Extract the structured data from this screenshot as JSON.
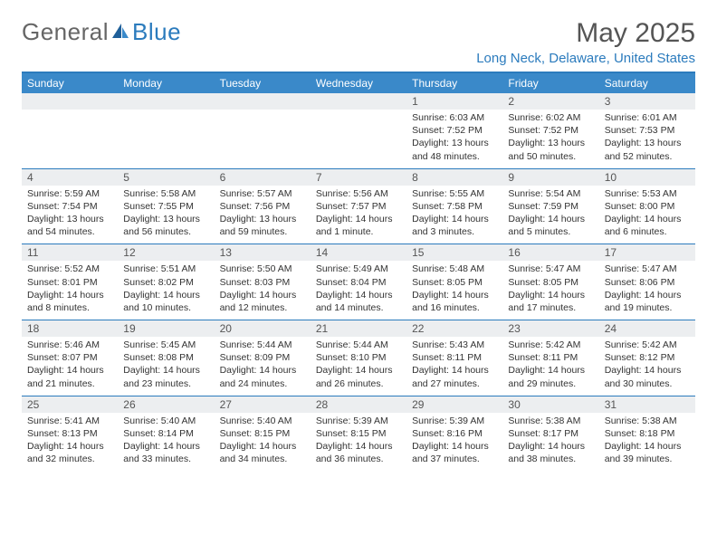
{
  "brand": {
    "part1": "General",
    "part2": "Blue"
  },
  "title": "May 2025",
  "location": "Long Neck, Delaware, United States",
  "colors": {
    "accent": "#2b7bbd",
    "header_bg": "#3a89c9",
    "daynum_bg": "#eceef0",
    "text": "#333333",
    "title_text": "#555555"
  },
  "weekdays": [
    "Sunday",
    "Monday",
    "Tuesday",
    "Wednesday",
    "Thursday",
    "Friday",
    "Saturday"
  ],
  "weeks": [
    [
      null,
      null,
      null,
      null,
      {
        "n": "1",
        "sr": "6:03 AM",
        "ss": "7:52 PM",
        "dl": "13 hours and 48 minutes."
      },
      {
        "n": "2",
        "sr": "6:02 AM",
        "ss": "7:52 PM",
        "dl": "13 hours and 50 minutes."
      },
      {
        "n": "3",
        "sr": "6:01 AM",
        "ss": "7:53 PM",
        "dl": "13 hours and 52 minutes."
      }
    ],
    [
      {
        "n": "4",
        "sr": "5:59 AM",
        "ss": "7:54 PM",
        "dl": "13 hours and 54 minutes."
      },
      {
        "n": "5",
        "sr": "5:58 AM",
        "ss": "7:55 PM",
        "dl": "13 hours and 56 minutes."
      },
      {
        "n": "6",
        "sr": "5:57 AM",
        "ss": "7:56 PM",
        "dl": "13 hours and 59 minutes."
      },
      {
        "n": "7",
        "sr": "5:56 AM",
        "ss": "7:57 PM",
        "dl": "14 hours and 1 minute."
      },
      {
        "n": "8",
        "sr": "5:55 AM",
        "ss": "7:58 PM",
        "dl": "14 hours and 3 minutes."
      },
      {
        "n": "9",
        "sr": "5:54 AM",
        "ss": "7:59 PM",
        "dl": "14 hours and 5 minutes."
      },
      {
        "n": "10",
        "sr": "5:53 AM",
        "ss": "8:00 PM",
        "dl": "14 hours and 6 minutes."
      }
    ],
    [
      {
        "n": "11",
        "sr": "5:52 AM",
        "ss": "8:01 PM",
        "dl": "14 hours and 8 minutes."
      },
      {
        "n": "12",
        "sr": "5:51 AM",
        "ss": "8:02 PM",
        "dl": "14 hours and 10 minutes."
      },
      {
        "n": "13",
        "sr": "5:50 AM",
        "ss": "8:03 PM",
        "dl": "14 hours and 12 minutes."
      },
      {
        "n": "14",
        "sr": "5:49 AM",
        "ss": "8:04 PM",
        "dl": "14 hours and 14 minutes."
      },
      {
        "n": "15",
        "sr": "5:48 AM",
        "ss": "8:05 PM",
        "dl": "14 hours and 16 minutes."
      },
      {
        "n": "16",
        "sr": "5:47 AM",
        "ss": "8:05 PM",
        "dl": "14 hours and 17 minutes."
      },
      {
        "n": "17",
        "sr": "5:47 AM",
        "ss": "8:06 PM",
        "dl": "14 hours and 19 minutes."
      }
    ],
    [
      {
        "n": "18",
        "sr": "5:46 AM",
        "ss": "8:07 PM",
        "dl": "14 hours and 21 minutes."
      },
      {
        "n": "19",
        "sr": "5:45 AM",
        "ss": "8:08 PM",
        "dl": "14 hours and 23 minutes."
      },
      {
        "n": "20",
        "sr": "5:44 AM",
        "ss": "8:09 PM",
        "dl": "14 hours and 24 minutes."
      },
      {
        "n": "21",
        "sr": "5:44 AM",
        "ss": "8:10 PM",
        "dl": "14 hours and 26 minutes."
      },
      {
        "n": "22",
        "sr": "5:43 AM",
        "ss": "8:11 PM",
        "dl": "14 hours and 27 minutes."
      },
      {
        "n": "23",
        "sr": "5:42 AM",
        "ss": "8:11 PM",
        "dl": "14 hours and 29 minutes."
      },
      {
        "n": "24",
        "sr": "5:42 AM",
        "ss": "8:12 PM",
        "dl": "14 hours and 30 minutes."
      }
    ],
    [
      {
        "n": "25",
        "sr": "5:41 AM",
        "ss": "8:13 PM",
        "dl": "14 hours and 32 minutes."
      },
      {
        "n": "26",
        "sr": "5:40 AM",
        "ss": "8:14 PM",
        "dl": "14 hours and 33 minutes."
      },
      {
        "n": "27",
        "sr": "5:40 AM",
        "ss": "8:15 PM",
        "dl": "14 hours and 34 minutes."
      },
      {
        "n": "28",
        "sr": "5:39 AM",
        "ss": "8:15 PM",
        "dl": "14 hours and 36 minutes."
      },
      {
        "n": "29",
        "sr": "5:39 AM",
        "ss": "8:16 PM",
        "dl": "14 hours and 37 minutes."
      },
      {
        "n": "30",
        "sr": "5:38 AM",
        "ss": "8:17 PM",
        "dl": "14 hours and 38 minutes."
      },
      {
        "n": "31",
        "sr": "5:38 AM",
        "ss": "8:18 PM",
        "dl": "14 hours and 39 minutes."
      }
    ]
  ],
  "labels": {
    "sunrise": "Sunrise: ",
    "sunset": "Sunset: ",
    "daylight": "Daylight: "
  }
}
